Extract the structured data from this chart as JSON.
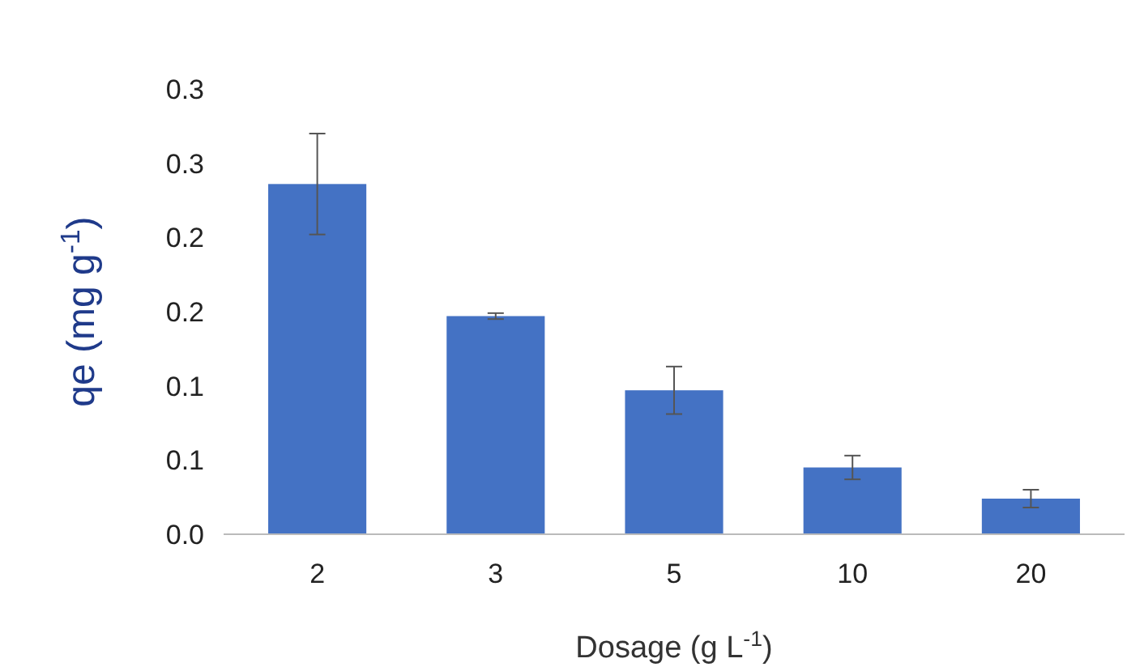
{
  "chart_data": {
    "type": "bar",
    "xlabel": "Dosage (g L$^{-1}$)",
    "ylabel": "qe (mg g$^{-1}$)",
    "categories": [
      "2",
      "3",
      "5",
      "10",
      "20"
    ],
    "values": [
      0.236,
      0.147,
      0.097,
      0.045,
      0.024
    ],
    "errors": [
      0.034,
      0.002,
      0.016,
      0.008,
      0.006
    ],
    "color": "#4472c4",
    "ylim": [
      0,
      0.3
    ],
    "yticks": [
      {
        "value": 0,
        "label": "0.0"
      },
      {
        "value": 0.05,
        "label": "0.1"
      },
      {
        "value": 0.1,
        "label": "0.1"
      },
      {
        "value": 0.15,
        "label": "0.2"
      },
      {
        "value": 0.2,
        "label": "0.2"
      },
      {
        "value": 0.25,
        "label": "0.3"
      },
      {
        "value": 0.3,
        "label": "0.3"
      }
    ],
    "grid": false
  }
}
